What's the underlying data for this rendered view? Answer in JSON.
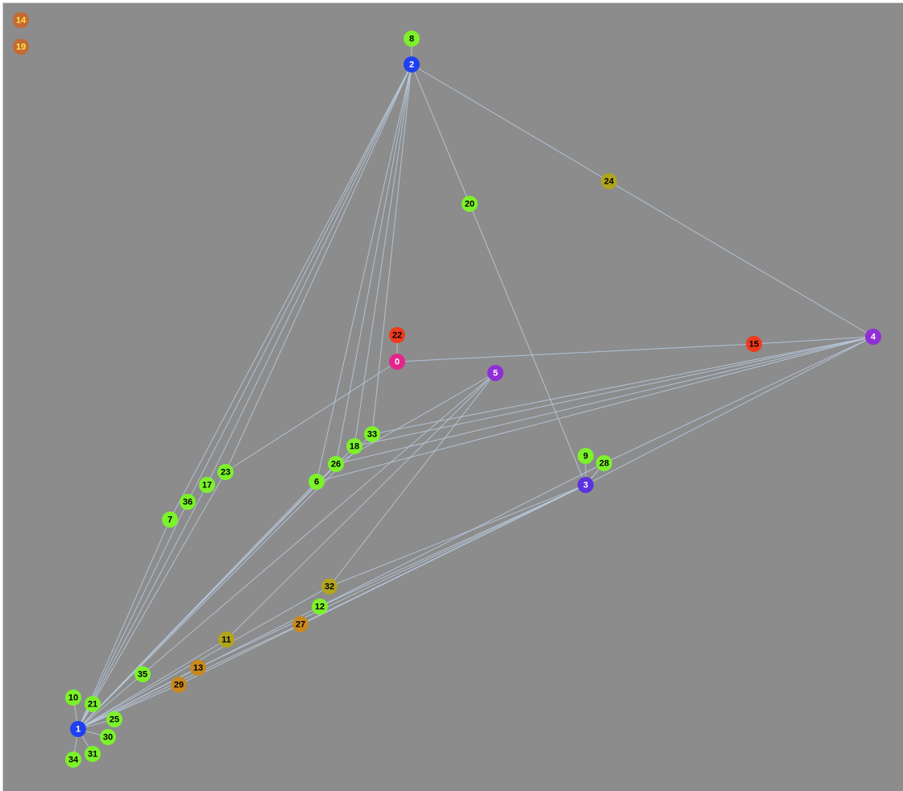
{
  "graph": {
    "colors": {
      "background": "#8c8c8c",
      "edge": "#b9cbe0",
      "green": "#7cf22a",
      "blue": "#1f3ff0",
      "indigo": "#5b32e0",
      "purple": "#8f2fd6",
      "magenta": "#e4258c",
      "red": "#f03a1c",
      "olive": "#b2a51c",
      "ochre": "#c9891f",
      "brown": "#c56a33"
    },
    "nodes": [
      {
        "id": "0",
        "color": "magenta",
        "text": "#ffffff"
      },
      {
        "id": "1",
        "color": "blue",
        "text": "#ffffff"
      },
      {
        "id": "2",
        "color": "blue",
        "text": "#ffffff"
      },
      {
        "id": "3",
        "color": "indigo",
        "text": "#ffffff"
      },
      {
        "id": "4",
        "color": "purple",
        "text": "#ffffff"
      },
      {
        "id": "5",
        "color": "purple",
        "text": "#ffffff"
      },
      {
        "id": "6",
        "color": "green",
        "text": "#000000"
      },
      {
        "id": "7",
        "color": "green",
        "text": "#000000"
      },
      {
        "id": "8",
        "color": "green",
        "text": "#000000"
      },
      {
        "id": "9",
        "color": "green",
        "text": "#000000"
      },
      {
        "id": "10",
        "color": "green",
        "text": "#000000"
      },
      {
        "id": "11",
        "color": "olive",
        "text": "#000000"
      },
      {
        "id": "12",
        "color": "green",
        "text": "#000000"
      },
      {
        "id": "13",
        "color": "ochre",
        "text": "#000000"
      },
      {
        "id": "14",
        "color": "brown",
        "text": "#ffe84a"
      },
      {
        "id": "15",
        "color": "red",
        "text": "#000000"
      },
      {
        "id": "17",
        "color": "green",
        "text": "#000000"
      },
      {
        "id": "18",
        "color": "green",
        "text": "#000000"
      },
      {
        "id": "19",
        "color": "brown",
        "text": "#ffe84a"
      },
      {
        "id": "20",
        "color": "green",
        "text": "#000000"
      },
      {
        "id": "21",
        "color": "green",
        "text": "#000000"
      },
      {
        "id": "22",
        "color": "red",
        "text": "#000000"
      },
      {
        "id": "23",
        "color": "green",
        "text": "#000000"
      },
      {
        "id": "24",
        "color": "olive",
        "text": "#000000"
      },
      {
        "id": "25",
        "color": "green",
        "text": "#000000"
      },
      {
        "id": "26",
        "color": "green",
        "text": "#000000"
      },
      {
        "id": "27",
        "color": "ochre",
        "text": "#000000"
      },
      {
        "id": "28",
        "color": "green",
        "text": "#000000"
      },
      {
        "id": "29",
        "color": "ochre",
        "text": "#000000"
      },
      {
        "id": "30",
        "color": "green",
        "text": "#000000"
      },
      {
        "id": "31",
        "color": "green",
        "text": "#000000"
      },
      {
        "id": "32",
        "color": "olive",
        "text": "#000000"
      },
      {
        "id": "33",
        "color": "green",
        "text": "#000000"
      },
      {
        "id": "34",
        "color": "green",
        "text": "#000000"
      },
      {
        "id": "35",
        "color": "green",
        "text": "#000000"
      },
      {
        "id": "36",
        "color": "green",
        "text": "#000000"
      }
    ],
    "edges": [
      [
        "2",
        "8"
      ],
      [
        "0",
        "22"
      ],
      [
        "2",
        "20"
      ],
      [
        "20",
        "3"
      ],
      [
        "2",
        "24"
      ],
      [
        "24",
        "4"
      ],
      [
        "0",
        "15"
      ],
      [
        "15",
        "4"
      ],
      [
        "2",
        "23"
      ],
      [
        "23",
        "1"
      ],
      [
        "2",
        "17"
      ],
      [
        "17",
        "1"
      ],
      [
        "2",
        "36"
      ],
      [
        "36",
        "1"
      ],
      [
        "2",
        "7"
      ],
      [
        "7",
        "1"
      ],
      [
        "2",
        "6"
      ],
      [
        "6",
        "1"
      ],
      [
        "2",
        "26"
      ],
      [
        "26",
        "1"
      ],
      [
        "2",
        "18"
      ],
      [
        "18",
        "1"
      ],
      [
        "2",
        "33"
      ],
      [
        "33",
        "1"
      ],
      [
        "4",
        "6"
      ],
      [
        "4",
        "26"
      ],
      [
        "4",
        "18"
      ],
      [
        "4",
        "33"
      ],
      [
        "4",
        "28"
      ],
      [
        "4",
        "3"
      ],
      [
        "0",
        "23"
      ],
      [
        "5",
        "26"
      ],
      [
        "5",
        "11"
      ],
      [
        "5",
        "32"
      ],
      [
        "5",
        "35"
      ],
      [
        "3",
        "9"
      ],
      [
        "3",
        "28"
      ],
      [
        "3",
        "12"
      ],
      [
        "12",
        "1"
      ],
      [
        "3",
        "27"
      ],
      [
        "27",
        "1"
      ],
      [
        "3",
        "32"
      ],
      [
        "32",
        "1"
      ],
      [
        "3",
        "13"
      ],
      [
        "13",
        "1"
      ],
      [
        "3",
        "29"
      ],
      [
        "29",
        "1"
      ],
      [
        "28",
        "12"
      ],
      [
        "11",
        "1"
      ],
      [
        "35",
        "1"
      ],
      [
        "1",
        "10"
      ],
      [
        "1",
        "21"
      ],
      [
        "1",
        "25"
      ],
      [
        "1",
        "30"
      ],
      [
        "1",
        "31"
      ],
      [
        "1",
        "34"
      ]
    ]
  }
}
